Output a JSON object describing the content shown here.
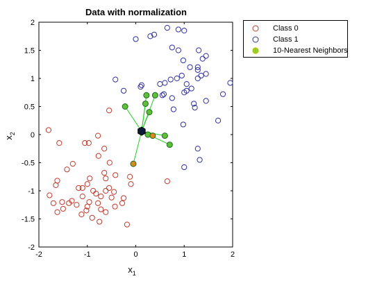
{
  "chart_data": {
    "type": "scatter",
    "title": "Data with normalization",
    "xlabel": "x1",
    "ylabel": "x2",
    "xlabel_base": "x",
    "xlabel_sub": "1",
    "ylabel_base": "x",
    "ylabel_sub": "2",
    "xlim": [
      -2,
      2
    ],
    "ylim": [
      -2,
      2
    ],
    "xticks": [
      -2,
      -1,
      0,
      1,
      2
    ],
    "yticks": [
      -2,
      -1.5,
      -1,
      -0.5,
      0,
      0.5,
      1,
      1.5,
      2
    ],
    "grid": false,
    "legend_position": "top-right outside",
    "colors": {
      "class0": "#c0392b",
      "class1": "#2e2e9e",
      "neighbor_fill": "#5fbf3a",
      "line": "#22cc22",
      "query": "#0c1a3a"
    },
    "series": [
      {
        "name": "Class 0",
        "marker": "open-circle",
        "points": [
          [
            -1.8,
            0.08
          ],
          [
            -1.58,
            -0.15
          ],
          [
            -1.05,
            -0.15
          ],
          [
            -0.97,
            -0.15
          ],
          [
            -1.3,
            -0.52
          ],
          [
            -1.42,
            -0.62
          ],
          [
            -0.78,
            -0.02
          ],
          [
            -0.65,
            -0.25
          ],
          [
            -0.77,
            -0.38
          ],
          [
            -0.54,
            -0.5
          ],
          [
            -0.95,
            -0.78
          ],
          [
            -1.0,
            -0.88
          ],
          [
            -1.1,
            -0.95
          ],
          [
            -0.88,
            -1.0
          ],
          [
            -0.82,
            -1.05
          ],
          [
            -0.62,
            -1.0
          ],
          [
            -0.55,
            -0.95
          ],
          [
            -0.45,
            -1.02
          ],
          [
            -0.5,
            -1.12
          ],
          [
            -0.72,
            -1.1
          ],
          [
            -0.78,
            -1.22
          ],
          [
            -0.96,
            -1.2
          ],
          [
            -1.0,
            -1.28
          ],
          [
            -1.18,
            -0.95
          ],
          [
            -1.32,
            -1.18
          ],
          [
            -1.38,
            -1.22
          ],
          [
            -1.52,
            -1.2
          ],
          [
            -1.62,
            -0.82
          ],
          [
            -1.65,
            -0.9
          ],
          [
            -1.7,
            -1.22
          ],
          [
            -1.78,
            -1.08
          ],
          [
            -1.62,
            -1.38
          ],
          [
            -1.5,
            -1.32
          ],
          [
            -1.12,
            -1.42
          ],
          [
            -0.9,
            -1.48
          ],
          [
            -0.72,
            -1.33
          ],
          [
            -0.62,
            -1.38
          ],
          [
            -0.43,
            -1.28
          ],
          [
            -0.25,
            -1.13
          ],
          [
            -0.28,
            -1.22
          ],
          [
            -0.18,
            -1.6
          ],
          [
            -0.62,
            -0.78
          ],
          [
            -0.42,
            -0.72
          ],
          [
            -0.12,
            -0.75
          ],
          [
            -0.1,
            -0.88
          ],
          [
            -0.75,
            -1.55
          ],
          [
            -0.65,
            -0.68
          ],
          [
            -0.55,
            0.43
          ],
          [
            -1.1,
            -1.1
          ],
          [
            0.65,
            -0.83
          ],
          [
            -1.02,
            -1.35
          ],
          [
            -1.22,
            -1.25
          ]
        ]
      },
      {
        "name": "Class 1",
        "marker": "open-circle",
        "points": [
          [
            0.0,
            1.7
          ],
          [
            0.3,
            1.75
          ],
          [
            0.38,
            1.78
          ],
          [
            0.65,
            1.9
          ],
          [
            0.88,
            1.87
          ],
          [
            1.0,
            1.85
          ],
          [
            0.75,
            1.55
          ],
          [
            0.88,
            1.5
          ],
          [
            1.3,
            1.5
          ],
          [
            1.45,
            1.4
          ],
          [
            1.38,
            1.35
          ],
          [
            1.28,
            1.2
          ],
          [
            1.12,
            1.2
          ],
          [
            0.98,
            1.32
          ],
          [
            1.28,
            1.15
          ],
          [
            1.35,
            1.05
          ],
          [
            1.45,
            1.08
          ],
          [
            1.28,
            1.0
          ],
          [
            0.95,
            1.05
          ],
          [
            0.85,
            1.0
          ],
          [
            0.72,
            0.98
          ],
          [
            1.05,
            0.9
          ],
          [
            1.15,
            0.82
          ],
          [
            1.05,
            0.78
          ],
          [
            1.0,
            0.75
          ],
          [
            0.6,
            0.92
          ],
          [
            0.5,
            0.9
          ],
          [
            0.58,
            0.72
          ],
          [
            0.55,
            0.7
          ],
          [
            0.1,
            0.85
          ],
          [
            0.12,
            0.88
          ],
          [
            -0.42,
            0.98
          ],
          [
            -0.25,
            0.78
          ],
          [
            0.75,
            0.65
          ],
          [
            1.2,
            0.55
          ],
          [
            1.22,
            0.48
          ],
          [
            1.45,
            0.6
          ],
          [
            1.8,
            0.72
          ],
          [
            1.95,
            0.92
          ],
          [
            1.7,
            0.25
          ],
          [
            1.28,
            -0.25
          ],
          [
            1.32,
            -0.45
          ],
          [
            1.0,
            -0.58
          ],
          [
            0.98,
            0.18
          ],
          [
            0.78,
            0.45
          ]
        ]
      },
      {
        "name": "10-Nearest Neighbors",
        "marker": "filled-circle",
        "points": [
          [
            -0.22,
            0.5
          ],
          [
            0.22,
            0.7
          ],
          [
            0.4,
            0.7
          ],
          [
            0.2,
            0.55
          ],
          [
            0.28,
            0.4
          ],
          [
            0.25,
            0.0
          ],
          [
            0.35,
            -0.02
          ],
          [
            0.6,
            -0.02
          ],
          [
            0.7,
            -0.18
          ],
          [
            -0.05,
            -0.52
          ]
        ]
      }
    ],
    "query_point": [
      0.12,
      0.06
    ]
  }
}
